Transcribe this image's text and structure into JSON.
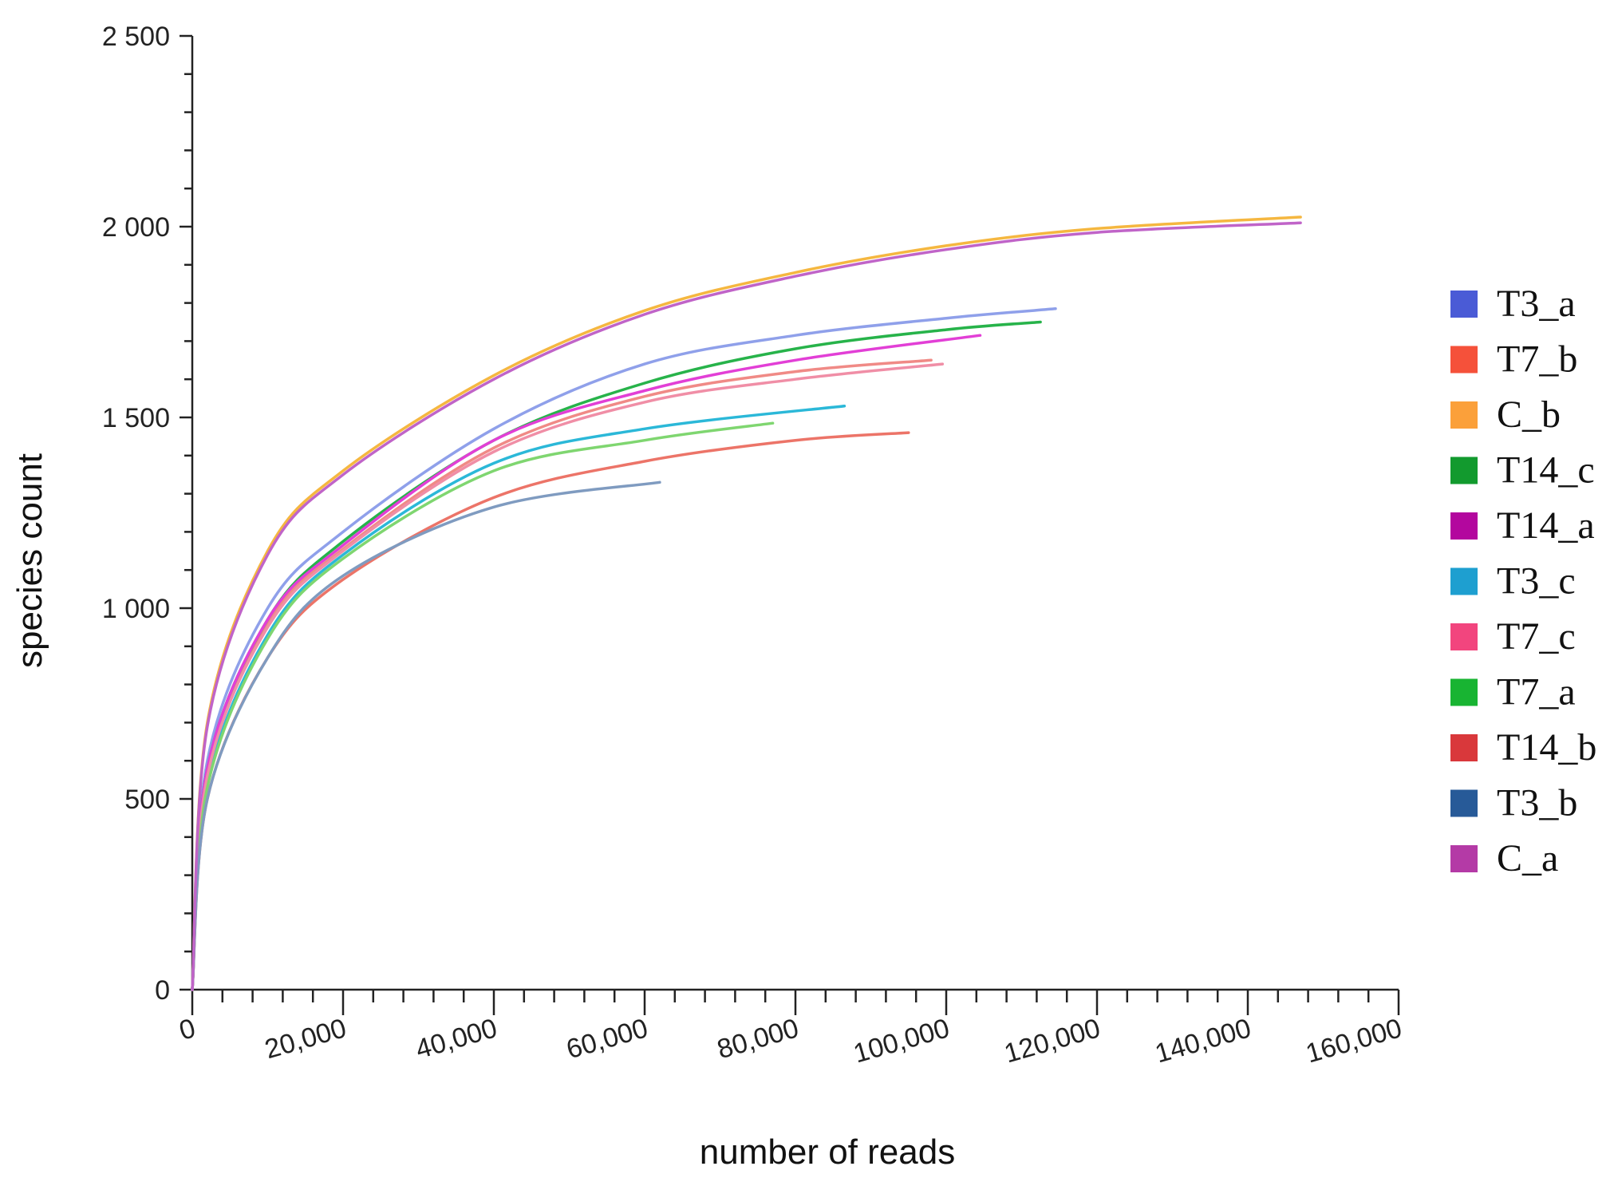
{
  "chart_data": {
    "type": "line",
    "title": "",
    "xlabel": "number of reads",
    "ylabel": "species count",
    "xlim": [
      0,
      160000
    ],
    "ylim": [
      0,
      2500
    ],
    "xticks": [
      0,
      20000,
      40000,
      60000,
      80000,
      100000,
      120000,
      140000,
      160000
    ],
    "xtick_labels": [
      "0",
      "20,000",
      "40,000",
      "60,000",
      "80,000",
      "100,000",
      "120,000",
      "140,000",
      "160,000"
    ],
    "yticks": [
      0,
      500,
      1000,
      1500,
      2000,
      2500
    ],
    "ytick_labels": [
      "0",
      "500",
      "1 000",
      "1 500",
      "2 000",
      "2 500"
    ],
    "grid": false,
    "legend_position": "right",
    "series": [
      {
        "name": "T3_a",
        "color": "#8fa0ea",
        "x": [
          0,
          2000,
          10000,
          20000,
          40000,
          60000,
          80000,
          100000,
          114500
        ],
        "y": [
          0,
          600,
          1000,
          1200,
          1470,
          1640,
          1715,
          1760,
          1785
        ]
      },
      {
        "name": "T7_b",
        "color": "#f08a86",
        "x": [
          0,
          2000,
          10000,
          20000,
          40000,
          60000,
          80000,
          98000
        ],
        "y": [
          0,
          560,
          960,
          1155,
          1420,
          1555,
          1620,
          1650
        ]
      },
      {
        "name": "C_b",
        "color": "#f5b740",
        "x": [
          0,
          2000,
          10000,
          20000,
          40000,
          60000,
          80000,
          100000,
          120000,
          147000
        ],
        "y": [
          0,
          700,
          1150,
          1360,
          1610,
          1780,
          1880,
          1950,
          1995,
          2025
        ]
      },
      {
        "name": "T14_c",
        "color": "#27b34a",
        "x": [
          0,
          2000,
          10000,
          20000,
          40000,
          60000,
          80000,
          100000,
          112500
        ],
        "y": [
          0,
          580,
          970,
          1175,
          1440,
          1590,
          1680,
          1730,
          1750
        ]
      },
      {
        "name": "T14_a",
        "color": "#e23fd6",
        "x": [
          0,
          2000,
          10000,
          20000,
          40000,
          60000,
          80000,
          104500
        ],
        "y": [
          0,
          580,
          970,
          1165,
          1440,
          1570,
          1650,
          1715
        ]
      },
      {
        "name": "T3_c",
        "color": "#2bb8d8",
        "x": [
          0,
          2000,
          10000,
          20000,
          40000,
          60000,
          86500
        ],
        "y": [
          0,
          540,
          930,
          1140,
          1380,
          1470,
          1530
        ]
      },
      {
        "name": "T7_c",
        "color": "#f08ea6",
        "x": [
          0,
          2000,
          10000,
          20000,
          40000,
          60000,
          80000,
          99500
        ],
        "y": [
          0,
          560,
          950,
          1150,
          1410,
          1540,
          1600,
          1640
        ]
      },
      {
        "name": "T7_a",
        "color": "#7fd670",
        "x": [
          0,
          2000,
          10000,
          20000,
          40000,
          60000,
          77000
        ],
        "y": [
          0,
          530,
          920,
          1130,
          1360,
          1440,
          1485
        ]
      },
      {
        "name": "T14_b",
        "color": "#ec7468",
        "x": [
          0,
          2000,
          10000,
          20000,
          40000,
          60000,
          80000,
          95000
        ],
        "y": [
          0,
          500,
          870,
          1075,
          1290,
          1385,
          1440,
          1460
        ]
      },
      {
        "name": "T3_b",
        "color": "#7f9bc0",
        "x": [
          0,
          2000,
          10000,
          20000,
          40000,
          62000
        ],
        "y": [
          0,
          500,
          870,
          1085,
          1265,
          1330
        ]
      },
      {
        "name": "C_a",
        "color": "#c064c8",
        "x": [
          0,
          2000,
          10000,
          20000,
          40000,
          60000,
          80000,
          100000,
          120000,
          147000
        ],
        "y": [
          0,
          690,
          1140,
          1350,
          1600,
          1770,
          1870,
          1940,
          1985,
          2010
        ]
      }
    ],
    "legend": [
      {
        "name": "T3_a",
        "color": "#4a5bd6"
      },
      {
        "name": "T7_b",
        "color": "#f5513a"
      },
      {
        "name": "C_b",
        "color": "#fba03a"
      },
      {
        "name": "T14_c",
        "color": "#129a2e"
      },
      {
        "name": "T14_a",
        "color": "#b3079e"
      },
      {
        "name": "T3_c",
        "color": "#1e9fd0"
      },
      {
        "name": "T7_c",
        "color": "#f2457e"
      },
      {
        "name": "T7_a",
        "color": "#18b432"
      },
      {
        "name": "T14_b",
        "color": "#d9383b"
      },
      {
        "name": "T3_b",
        "color": "#275a98"
      },
      {
        "name": "C_a",
        "color": "#b43aa6"
      }
    ]
  }
}
